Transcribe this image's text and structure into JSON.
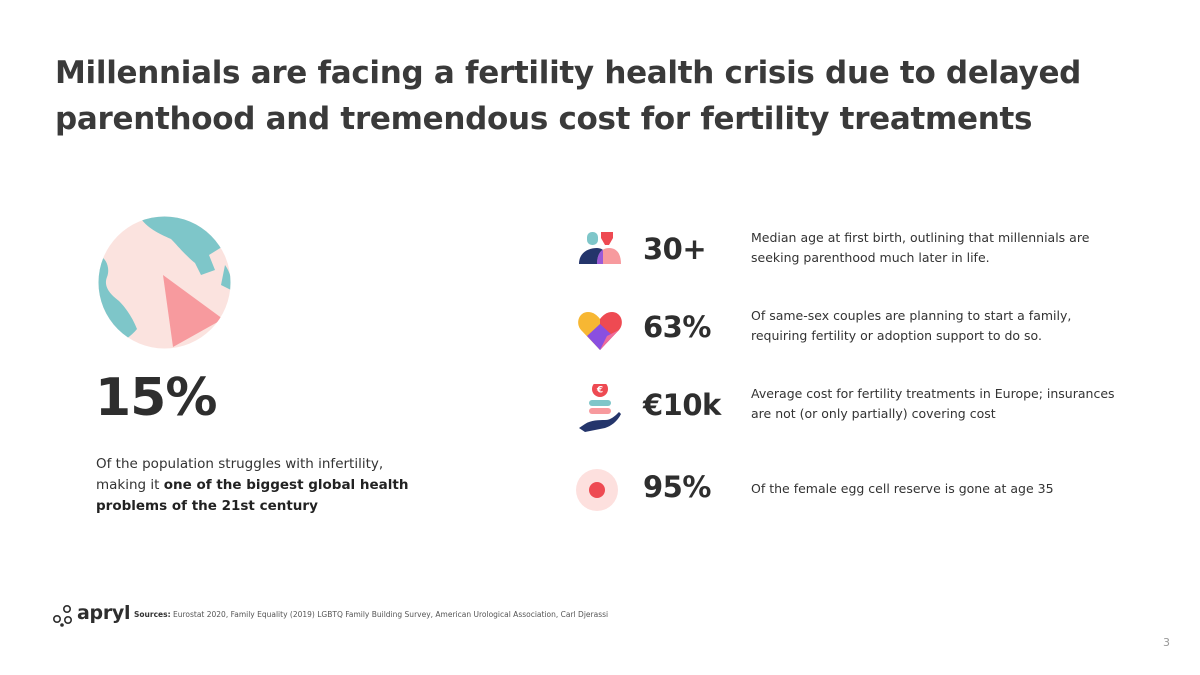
{
  "title": "Millennials are facing a fertility health crisis due to delayed parenthood and tremendous cost for fertility treatments",
  "main_stat": {
    "value": "15%",
    "text_plain": "Of the population struggles with infertility, making it ",
    "text_bold": "one of the biggest global health problems of the 21st century"
  },
  "stats": [
    {
      "icon": "parents-icon",
      "value": "30+",
      "text": "Median age at first birth, outlining that millennials are seeking parenthood much later in life."
    },
    {
      "icon": "heart-icon",
      "value": "63%",
      "text": "Of same-sex couples are planning to start a family, requiring fertility or adoption support to do so."
    },
    {
      "icon": "hand-coin-icon",
      "value": "€10k",
      "text": "Average cost for fertility treatments in Europe; insurances are not (or only partially) covering cost"
    },
    {
      "icon": "egg-cell-icon",
      "value": "95%",
      "text": "Of the female egg cell reserve is gone at age 35"
    }
  ],
  "footer": {
    "logo": "apryl",
    "sources_label": "Sources:",
    "sources_text": " Eurostat 2020, Family Equality (2019) LGBTQ Family Building Survey, American Urological Association, Carl Djerassi"
  },
  "page_number": "3",
  "colors": {
    "teal": "#7ec6c9",
    "pink": "#f79a9e",
    "light_pink": "#fbe3df",
    "navy": "#24356b",
    "red": "#ee4a52",
    "purple": "#8a4fe0"
  }
}
